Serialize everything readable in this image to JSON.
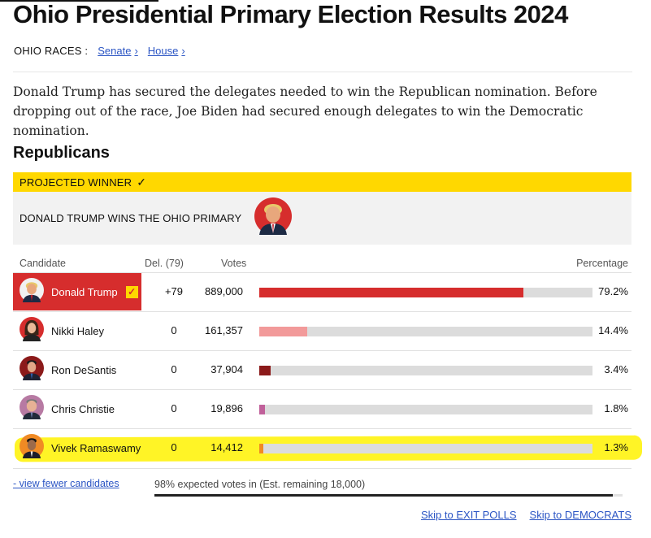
{
  "page": {
    "title": "Ohio Presidential Primary Election Results 2024"
  },
  "races": {
    "label": "OHIO RACES :",
    "links": [
      {
        "label": "Senate"
      },
      {
        "label": "House"
      }
    ]
  },
  "summary": "Donald Trump has secured the delegates needed to win the Republican nomination. Before dropping out of the race, Joe Biden had secured enough delegates to win the Democratic nomination.",
  "section": {
    "title": "Republicans",
    "projected_label": "PROJECTED WINNER",
    "winner_text": "DONALD TRUMP WINS THE OHIO PRIMARY"
  },
  "table": {
    "headers": {
      "candidate": "Candidate",
      "delegates": "Del. (79)",
      "votes": "Votes",
      "percentage": "Percentage"
    },
    "rows": [
      {
        "name": "Donald Trump",
        "delegates": "+79",
        "votes": "889,000",
        "pct": "79.2%",
        "share": 0.792,
        "color": "#d62d2d",
        "winner": true
      },
      {
        "name": "Nikki Haley",
        "delegates": "0",
        "votes": "161,357",
        "pct": "14.4%",
        "share": 0.144,
        "color": "#f29a9a",
        "winner": false
      },
      {
        "name": "Ron DeSantis",
        "delegates": "0",
        "votes": "37,904",
        "pct": "3.4%",
        "share": 0.034,
        "color": "#8b1a1a",
        "winner": false
      },
      {
        "name": "Chris Christie",
        "delegates": "0",
        "votes": "19,896",
        "pct": "1.8%",
        "share": 0.018,
        "color": "#c0609a",
        "winner": false
      },
      {
        "name": "Vivek Ramaswamy",
        "delegates": "0",
        "votes": "14,412",
        "pct": "1.3%",
        "share": 0.013,
        "color": "#f08a24",
        "winner": false
      }
    ]
  },
  "footer": {
    "fewer_link": "- view fewer candidates",
    "expected": "98% expected votes in (Est. remaining 18,000)",
    "expected_share": 0.98,
    "skip_exit_polls": "Skip to EXIT POLLS",
    "skip_democrats": "Skip to DEMOCRATS"
  },
  "colors": {
    "accent": "#ffd800",
    "winner_red": "#d62d2d",
    "link": "#2b55c4"
  }
}
